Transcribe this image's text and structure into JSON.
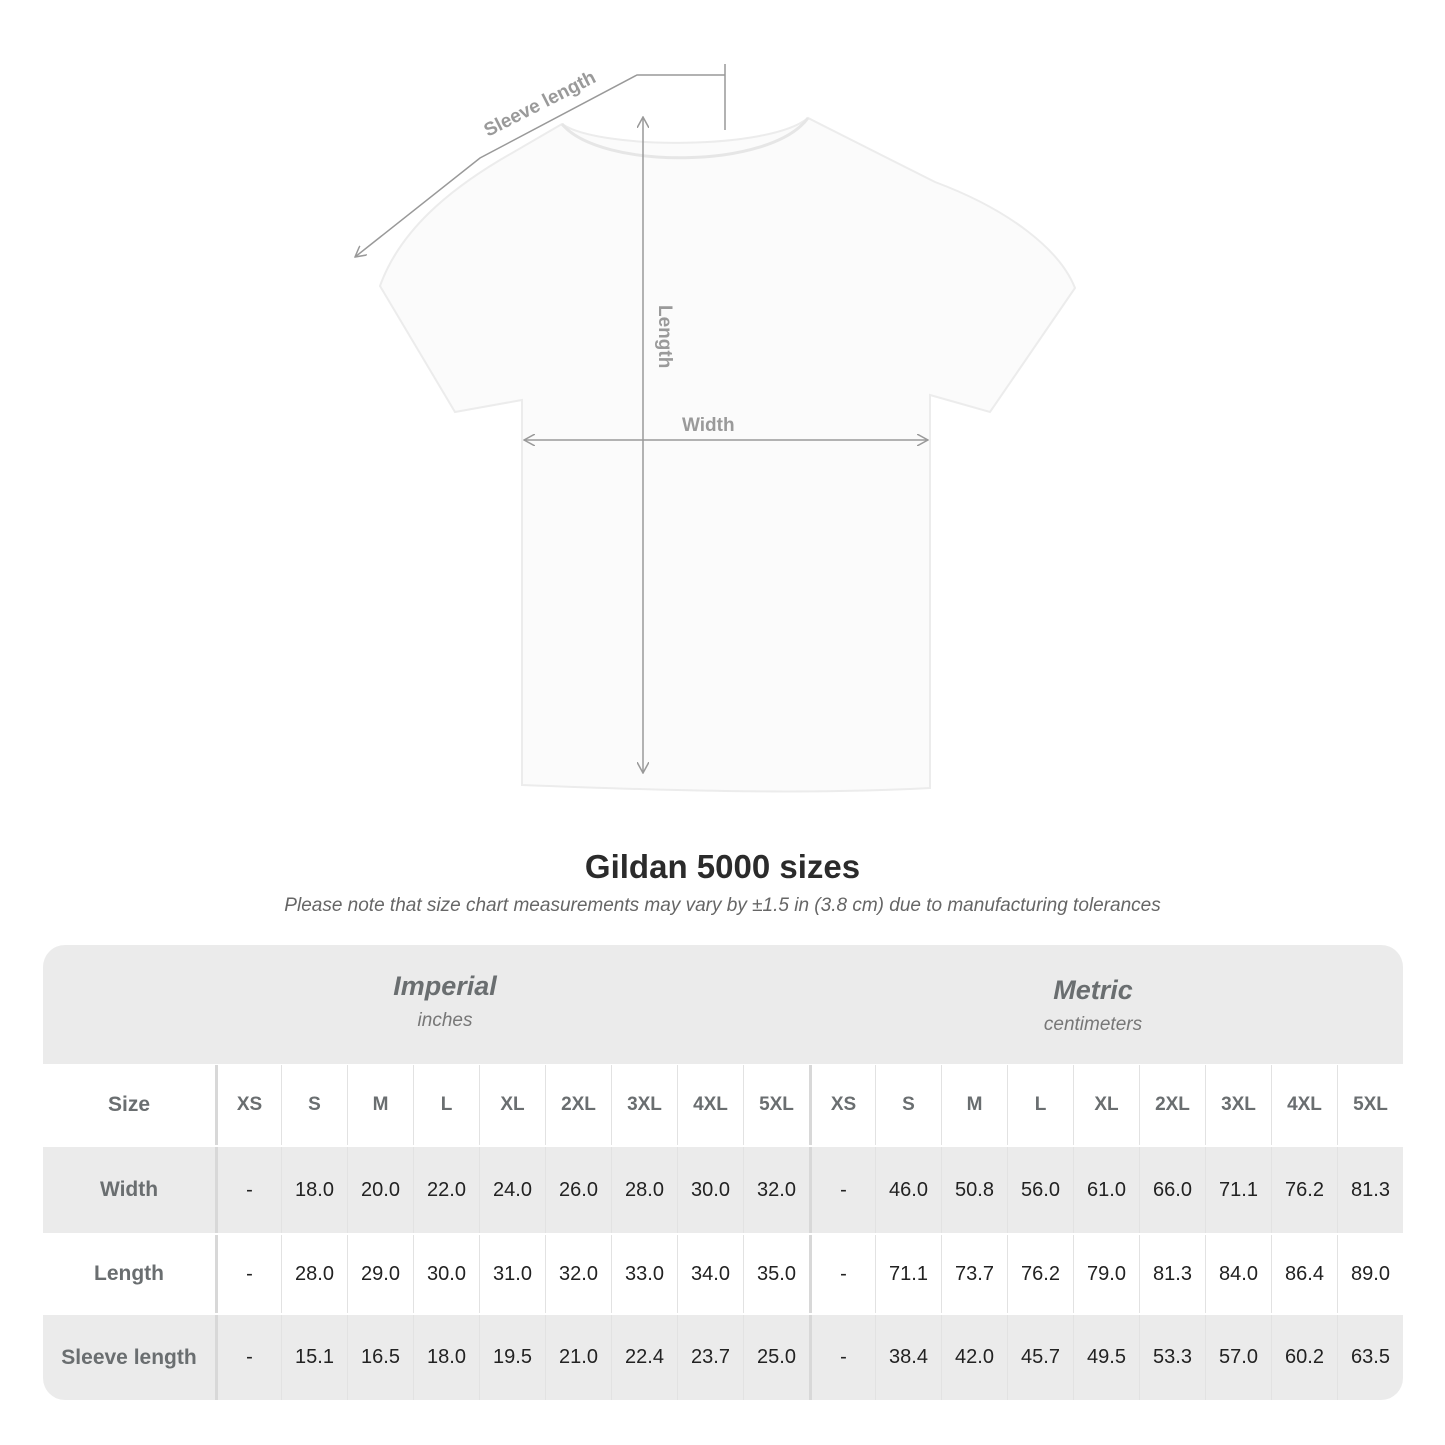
{
  "diagram": {
    "labels": {
      "sleeve": "Sleeve length",
      "length": "Length",
      "width": "Width"
    }
  },
  "title": "Gildan 5000 sizes",
  "note": "Please note that size chart measurements may vary by ±1.5 in (3.8 cm) due to manufacturing tolerances",
  "table": {
    "groups": [
      {
        "name": "Imperial",
        "unit": "inches"
      },
      {
        "name": "Metric",
        "unit": "centimeters"
      }
    ],
    "size_label": "Size",
    "sizes": [
      "XS",
      "S",
      "M",
      "L",
      "XL",
      "2XL",
      "3XL",
      "4XL",
      "5XL",
      "XS",
      "S",
      "M",
      "L",
      "XL",
      "2XL",
      "3XL",
      "4XL",
      "5XL"
    ],
    "rows": [
      {
        "label": "Width",
        "values": [
          "-",
          "18.0",
          "20.0",
          "22.0",
          "24.0",
          "26.0",
          "28.0",
          "30.0",
          "32.0",
          "-",
          "46.0",
          "50.8",
          "56.0",
          "61.0",
          "66.0",
          "71.1",
          "76.2",
          "81.3"
        ]
      },
      {
        "label": "Length",
        "values": [
          "-",
          "28.0",
          "29.0",
          "30.0",
          "31.0",
          "32.0",
          "33.0",
          "34.0",
          "35.0",
          "-",
          "71.1",
          "73.7",
          "76.2",
          "79.0",
          "81.3",
          "84.0",
          "86.4",
          "89.0"
        ]
      },
      {
        "label": "Sleeve length",
        "values": [
          "-",
          "15.1",
          "16.5",
          "18.0",
          "19.5",
          "21.0",
          "22.4",
          "23.7",
          "25.0",
          "-",
          "38.4",
          "42.0",
          "45.7",
          "49.5",
          "53.3",
          "57.0",
          "60.2",
          "63.5"
        ]
      }
    ]
  },
  "colors": {
    "label_gray": "#6a6e70",
    "band_gray": "#ebebeb",
    "arrow_gray": "#999999"
  }
}
